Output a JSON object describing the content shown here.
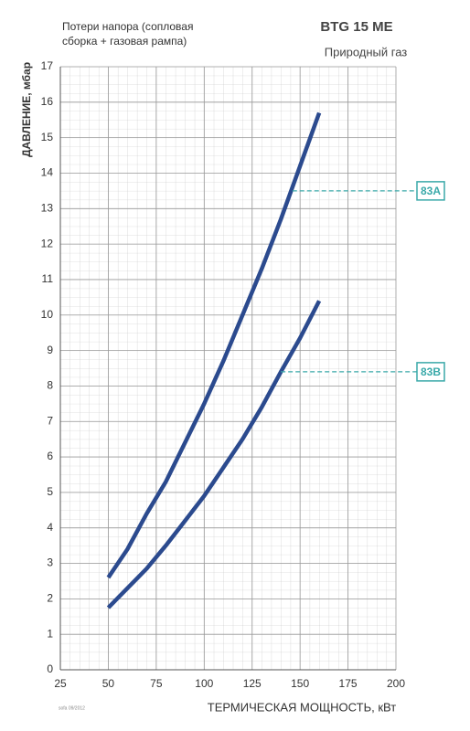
{
  "chart_data": {
    "type": "line",
    "title": "BTG 15 ME",
    "subtitle": "Природный газ",
    "note": [
      "Потери напора (сопловая",
      "сборка + газовая рампа)"
    ],
    "ylabel": "ДАВЛЕНИЕ, мбар",
    "xlabel": "ТЕРМИЧЕСКАЯ МОЩНОСТЬ, кВт",
    "footnote": "sofa 09/2012",
    "x": [
      50,
      60,
      70,
      80,
      90,
      100,
      110,
      120,
      130,
      140,
      150,
      160
    ],
    "series": [
      {
        "color": "#2b4a8e",
        "values": [
          2.6,
          3.4,
          4.4,
          5.3,
          6.4,
          7.5,
          8.7,
          10.0,
          11.3,
          12.7,
          14.2,
          15.7
        ]
      },
      {
        "color": "#2b4a8e",
        "values": [
          1.75,
          2.3,
          2.85,
          3.5,
          4.2,
          4.9,
          5.7,
          6.5,
          7.4,
          8.4,
          9.35,
          10.4
        ]
      }
    ],
    "annotations": [
      {
        "label": "83A",
        "x": 146,
        "y": 13.5,
        "color": "#3aa9a9"
      },
      {
        "label": "83B",
        "x": 140,
        "y": 8.4,
        "color": "#3aa9a9"
      }
    ],
    "xlim": [
      25,
      200
    ],
    "xticks": [
      25,
      50,
      75,
      100,
      125,
      150,
      175,
      200
    ],
    "ylim": [
      0,
      17
    ],
    "yticks": [
      0,
      1,
      2,
      3,
      4,
      5,
      6,
      7,
      8,
      9,
      10,
      11,
      12,
      13,
      14,
      15,
      16,
      17
    ],
    "grid": true
  }
}
